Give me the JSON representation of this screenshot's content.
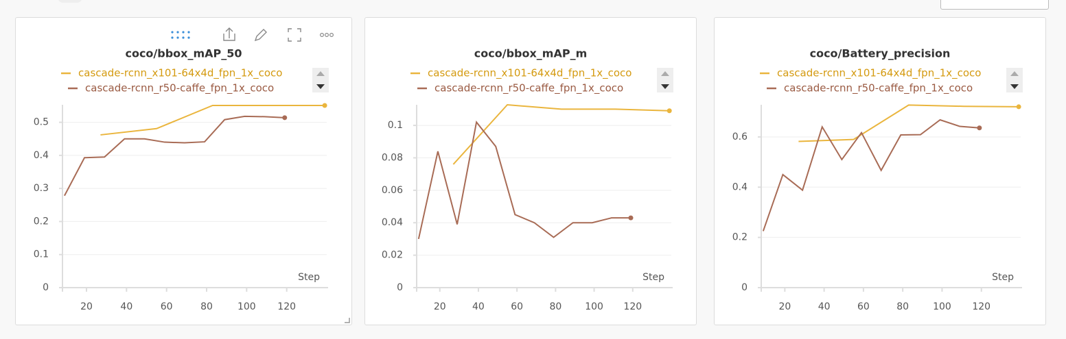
{
  "chart_data": [
    {
      "type": "line",
      "title": "coco/bbox_mAP_50",
      "x_label": "Step",
      "xlim": [
        8,
        140
      ],
      "xticks": [
        20,
        40,
        60,
        80,
        100,
        120
      ],
      "ylim": [
        0,
        0.553
      ],
      "yticks": [
        0,
        0.1,
        0.2,
        0.3,
        0.4,
        0.5
      ],
      "grid": true,
      "series": [
        {
          "name": "cascade-rcnn_x101-64x4d_fpn_1x_coco",
          "color": "#eab53d",
          "x": [
            27,
            55,
            83,
            111,
            139
          ],
          "values": [
            0.462,
            0.481,
            0.551,
            0.551,
            0.551
          ]
        },
        {
          "name": "cascade-rcnn_r50-caffe_fpn_1x_coco",
          "color": "#a86b55",
          "x": [
            9,
            19,
            29,
            39,
            49,
            59,
            69,
            79,
            89,
            99,
            109,
            119
          ],
          "values": [
            0.278,
            0.393,
            0.395,
            0.45,
            0.45,
            0.44,
            0.438,
            0.441,
            0.508,
            0.518,
            0.517,
            0.514
          ]
        }
      ]
    },
    {
      "type": "line",
      "title": "coco/bbox_mAP_m",
      "x_label": "Step",
      "xlim": [
        8,
        140
      ],
      "xticks": [
        20,
        40,
        60,
        80,
        100,
        120
      ],
      "ylim": [
        0,
        0.1127
      ],
      "yticks": [
        0,
        0.02,
        0.04,
        0.06,
        0.08,
        0.1
      ],
      "grid": true,
      "series": [
        {
          "name": "cascade-rcnn_x101-64x4d_fpn_1x_coco",
          "color": "#eab53d",
          "x": [
            27,
            55,
            83,
            111,
            139
          ],
          "values": [
            0.076,
            0.1127,
            0.11,
            0.11,
            0.109
          ]
        },
        {
          "name": "cascade-rcnn_r50-caffe_fpn_1x_coco",
          "color": "#a86b55",
          "x": [
            9,
            19,
            29,
            39,
            49,
            59,
            69,
            79,
            89,
            99,
            109,
            119
          ],
          "values": [
            0.03,
            0.084,
            0.039,
            0.102,
            0.087,
            0.045,
            0.04,
            0.031,
            0.04,
            0.04,
            0.043,
            0.043
          ]
        }
      ]
    },
    {
      "type": "line",
      "title": "coco/Battery_precision",
      "x_label": "Step",
      "xlim": [
        8,
        140
      ],
      "xticks": [
        20,
        40,
        60,
        80,
        100,
        120
      ],
      "ylim": [
        0,
        0.728
      ],
      "yticks": [
        0,
        0.2,
        0.4,
        0.6
      ],
      "grid": true,
      "series": [
        {
          "name": "cascade-rcnn_x101-64x4d_fpn_1x_coco",
          "color": "#eab53d",
          "x": [
            27,
            55,
            83,
            111,
            139
          ],
          "values": [
            0.582,
            0.59,
            0.727,
            0.722,
            0.72
          ]
        },
        {
          "name": "cascade-rcnn_r50-caffe_fpn_1x_coco",
          "color": "#a86b55",
          "x": [
            9,
            19,
            29,
            39,
            49,
            59,
            69,
            79,
            89,
            99,
            109,
            119
          ],
          "values": [
            0.225,
            0.45,
            0.388,
            0.64,
            0.51,
            0.617,
            0.467,
            0.608,
            0.609,
            0.668,
            0.642,
            0.636
          ]
        }
      ]
    }
  ]
}
